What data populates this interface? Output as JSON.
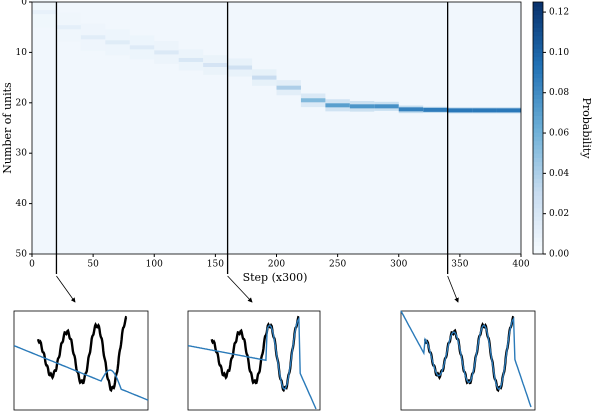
{
  "chart_data": {
    "type": "heatmap",
    "xlabel": "Step (x300)",
    "ylabel": "Number of units",
    "colorbar_label": "Probability",
    "x": [
      0,
      20,
      40,
      60,
      80,
      100,
      120,
      140,
      160,
      180,
      200,
      220,
      240,
      260,
      280,
      300,
      320,
      340,
      360,
      380,
      400
    ],
    "values": [
      2,
      5,
      7,
      8,
      9,
      10,
      11.5,
      12.5,
      13,
      15,
      17,
      19.5,
      20.5,
      20.7,
      20.7,
      21.3,
      21.4,
      21.5,
      21.5,
      21.5,
      21.5
    ],
    "peak_probability": [
      0.01,
      0.012,
      0.014,
      0.015,
      0.016,
      0.018,
      0.02,
      0.022,
      0.025,
      0.03,
      0.04,
      0.055,
      0.07,
      0.075,
      0.078,
      0.085,
      0.088,
      0.09,
      0.09,
      0.09,
      0.09
    ],
    "markers": [
      20,
      160,
      340
    ],
    "xlim": [
      0,
      400
    ],
    "xticks": [
      0,
      50,
      100,
      150,
      200,
      250,
      300,
      350,
      400
    ],
    "ylim": [
      0,
      50
    ],
    "yticks": [
      0,
      10,
      20,
      30,
      40,
      50
    ],
    "y_inverted": true,
    "clim": [
      0,
      0.125
    ],
    "cticks": [
      {
        "value": 0,
        "label": "0.00"
      },
      {
        "value": 0.02,
        "label": "0.02"
      },
      {
        "value": 0.04,
        "label": "0.04"
      },
      {
        "value": 0.06,
        "label": "0.06"
      },
      {
        "value": 0.08,
        "label": "0.08"
      },
      {
        "value": 0.1,
        "label": "0.10"
      },
      {
        "value": 0.12,
        "label": "0.12"
      }
    ],
    "colormap": [
      "#f7fbff",
      "#c6dbef",
      "#6baed6",
      "#2171b5",
      "#08306b"
    ]
  }
}
